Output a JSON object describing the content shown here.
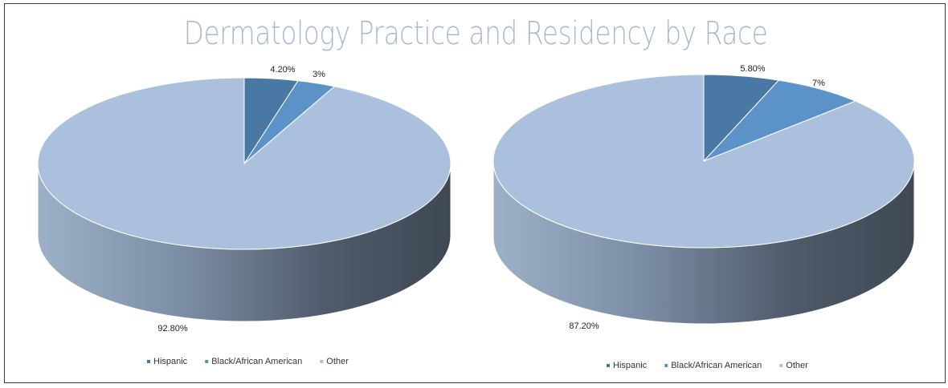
{
  "title": "Dermatology Practice and Residency by Race",
  "colors": {
    "hispanic": "#4a78a5",
    "black": "#5b93c8",
    "other": "#abc0dc",
    "title": "#a8bad0"
  },
  "chart_data": [
    {
      "type": "pie",
      "style": "3d",
      "categories": [
        "Hispanic",
        "Black/African American",
        "Other"
      ],
      "values": [
        4.2,
        3,
        92.8
      ],
      "data_labels": [
        "4.20%",
        "3%",
        "92.80%"
      ],
      "legend": {
        "placement": "bottom",
        "entries": [
          "Hispanic",
          "Black/African American",
          "Other"
        ]
      }
    },
    {
      "type": "pie",
      "style": "3d",
      "categories": [
        "Hispanic",
        "Black/African American",
        "Other"
      ],
      "values": [
        5.8,
        7,
        87.2
      ],
      "data_labels": [
        "5.80%",
        "7%",
        "87.20%"
      ],
      "legend": {
        "placement": "bottom",
        "entries": [
          "Hispanic",
          "Black/African American",
          "Other"
        ]
      }
    }
  ]
}
